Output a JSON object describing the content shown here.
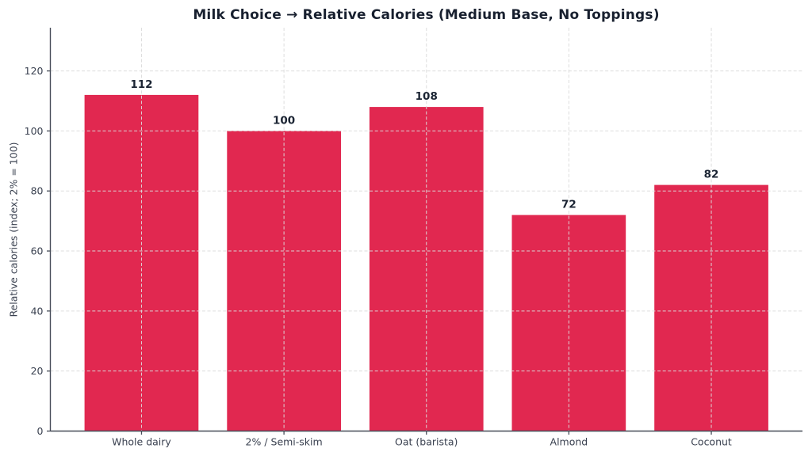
{
  "chart_data": {
    "type": "bar",
    "title": "Milk Choice → Relative Calories (Medium Base, No Toppings)",
    "categories": [
      "Whole dairy",
      "2% / Semi-skim",
      "Oat (barista)",
      "Almond",
      "Coconut"
    ],
    "values": [
      112,
      100,
      108,
      72,
      82
    ],
    "xlabel": "",
    "ylabel": "Relative calories (index; 2% = 100)",
    "ylim": [
      0,
      134.4
    ],
    "yticks": [
      0,
      20,
      40,
      60,
      80,
      100,
      120
    ],
    "grid": true,
    "grid_style": "dashed",
    "grid_above_bars": true,
    "legend": null,
    "bar_color": "#E12850",
    "colors": {
      "title": "#18202F",
      "value_label": "#1B2433",
      "tick_label": "#3A4150",
      "axis": "#454B57",
      "grid": "#DBDBDB",
      "background": "#FFFFFF"
    }
  }
}
